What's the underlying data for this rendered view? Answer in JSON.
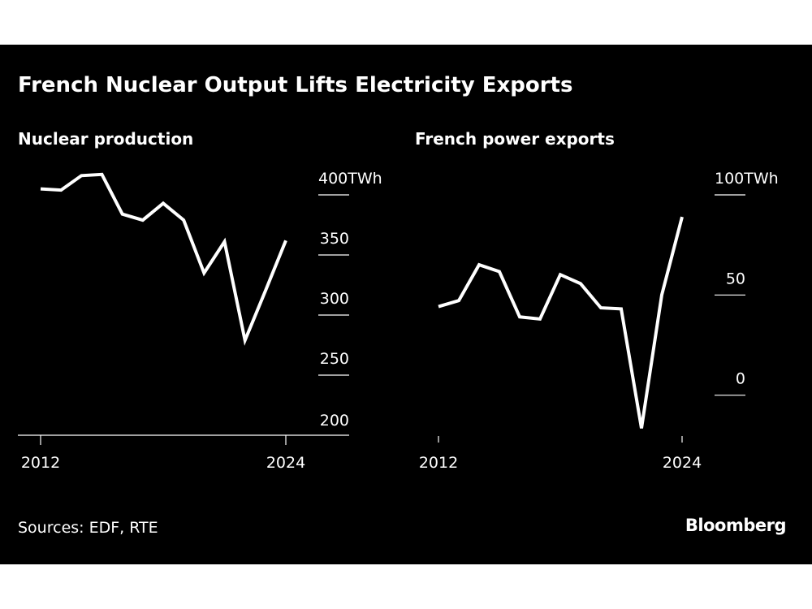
{
  "title": "French Nuclear Output Lifts Electricity Exports",
  "source": "Sources: EDF, RTE",
  "logo": "Bloomberg",
  "colors": {
    "background": "#000000",
    "line": "#ffffff",
    "text": "#ffffff"
  },
  "chart_data": [
    {
      "type": "line",
      "title": "Nuclear production",
      "x": [
        2012,
        2013,
        2014,
        2015,
        2016,
        2017,
        2018,
        2019,
        2020,
        2021,
        2022,
        2023,
        2024
      ],
      "values": [
        405,
        404,
        416,
        417,
        384,
        379,
        393,
        379,
        335,
        361,
        279,
        320,
        362
      ],
      "unit": "TWh",
      "ylim": [
        200,
        400
      ],
      "yticks": [
        200,
        250,
        300,
        350,
        400
      ],
      "ytick_labels": [
        "200",
        "250",
        "300",
        "350",
        "400TWh"
      ],
      "xtick_labels": [
        "2012",
        "2024"
      ],
      "axis_side": "right",
      "grid": false
    },
    {
      "type": "line",
      "title": "French power exports",
      "x": [
        2012,
        2013,
        2014,
        2015,
        2016,
        2017,
        2018,
        2019,
        2020,
        2021,
        2022,
        2023,
        2024
      ],
      "values": [
        44.2,
        47.2,
        65.1,
        61.7,
        39.1,
        38,
        60.2,
        55.7,
        43.6,
        43.1,
        -16.5,
        50.1,
        89
      ],
      "unit": "TWh",
      "ylim": [
        -20,
        100
      ],
      "yticks": [
        0,
        50,
        100
      ],
      "ytick_labels": [
        "0",
        "50",
        "100TWh"
      ],
      "xtick_labels": [
        "2012",
        "2024"
      ],
      "axis_side": "right",
      "grid": false
    }
  ]
}
